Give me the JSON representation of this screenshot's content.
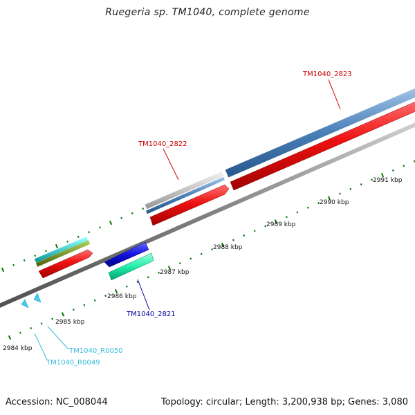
{
  "title": "Ruegeria sp. TM1040, complete genome",
  "footer": {
    "accession": "Accession: NC_008044",
    "topology": "Topology: circular; Length: 3,200,938 bp; Genes: 3,080"
  },
  "ticks": [
    {
      "label": "2984 kbp"
    },
    {
      "label": "2985 kbp"
    },
    {
      "label": "2986 kbp"
    },
    {
      "label": "2987 kbp"
    },
    {
      "label": "2988 kbp"
    },
    {
      "label": "2989 kbp"
    },
    {
      "label": "2990 kbp"
    },
    {
      "label": "2991 kbp"
    }
  ],
  "genes": [
    {
      "name": "TM1040_2821",
      "color": "#0000a0"
    },
    {
      "name": "TM1040_2822",
      "color": "#cc0000"
    },
    {
      "name": "TM1040_2823",
      "color": "#cc0000"
    },
    {
      "name": "TM1040_R0049",
      "color": "#33bbdd"
    },
    {
      "name": "TM1040_R0050",
      "color": "#33bbdd"
    }
  ],
  "colors": {
    "backbone": "#8a8a8a",
    "cds": "#ee1111",
    "cog_blue": "#4a80b8",
    "cog_gray": "#b8b8b8",
    "cog_cyan": "#22cccc",
    "cog_olive": "#779922",
    "reverse_blue": "#1111dd",
    "reverse_green": "#22eeaa",
    "trna": "#44ccee",
    "tick": "#007700"
  }
}
